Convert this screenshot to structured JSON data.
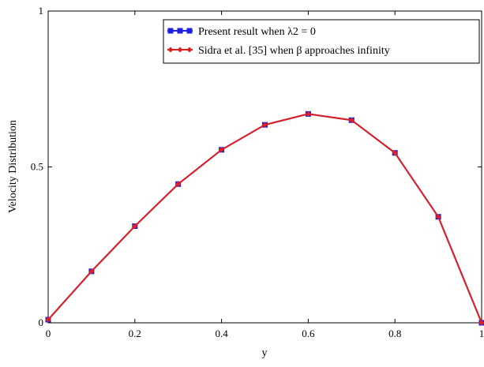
{
  "chart_data": {
    "type": "line",
    "title": "",
    "xlabel": "y",
    "ylabel": "Velocity  Distribution",
    "xlim": [
      0,
      1
    ],
    "ylim": [
      0,
      1
    ],
    "x_ticks": [
      0,
      0.2,
      0.4,
      0.6,
      0.8,
      1
    ],
    "x_tick_labels": [
      "0",
      "0.2",
      "0.4",
      "0.6",
      "0.8",
      "1"
    ],
    "y_ticks": [
      0,
      0.5,
      1
    ],
    "y_tick_labels": [
      "0",
      "0.5",
      "1"
    ],
    "grid": false,
    "legend_position": "top-right",
    "x": [
      0,
      0.1,
      0.2,
      0.3,
      0.4,
      0.5,
      0.6,
      0.7,
      0.8,
      0.9,
      1.0
    ],
    "series": [
      {
        "name": "Present result when λ2 = 0",
        "color": "#1f1fe0",
        "marker": "square",
        "values": [
          0.01,
          0.165,
          0.31,
          0.445,
          0.555,
          0.635,
          0.67,
          0.65,
          0.545,
          0.34,
          0.0
        ]
      },
      {
        "name": "Sidra et al. [35] when β approaches infinity",
        "color": "#e01f1f",
        "marker": "diamond",
        "values": [
          0.01,
          0.165,
          0.31,
          0.445,
          0.555,
          0.635,
          0.67,
          0.65,
          0.545,
          0.34,
          0.0
        ]
      }
    ]
  }
}
